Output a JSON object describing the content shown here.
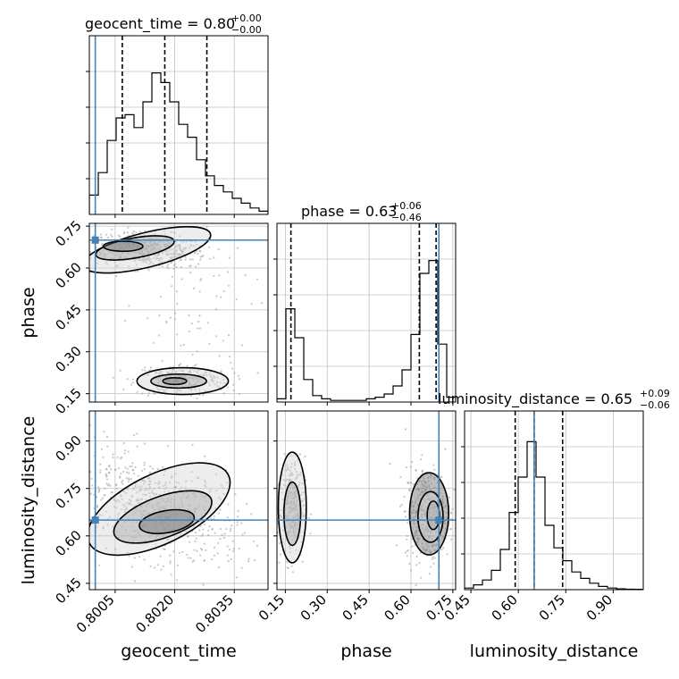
{
  "chart_data": {
    "type": "corner",
    "parameters": [
      "geocent_time",
      "phase",
      "luminosity_distance"
    ],
    "colors": {
      "truth": "#4682b4",
      "hist": "#000000",
      "grid": "#c0c0c0",
      "points": "#9a9a9a",
      "contour": "#000000"
    },
    "titles": [
      {
        "text": "geocent_time = 0.80",
        "plus": "+0.00",
        "minus": "−0.00"
      },
      {
        "text": "phase = 0.63",
        "plus": "+0.06",
        "minus": "−0.46"
      },
      {
        "text": "luminosity_distance = 0.65",
        "plus": "+0.09",
        "minus": "−0.06"
      }
    ],
    "axes": [
      {
        "name": "geocent_time",
        "range": [
          0.79985,
          0.80435
        ],
        "ticks": [
          0.8005,
          0.802,
          0.8035
        ],
        "tick_labels": [
          "0.8005",
          "0.8020",
          "0.8035"
        ],
        "truth": 0.8,
        "quantiles": [
          0.80068,
          0.80175,
          0.80281
        ]
      },
      {
        "name": "phase",
        "range": [
          0.12,
          0.76
        ],
        "ticks": [
          0.15,
          0.3,
          0.45,
          0.6,
          0.75
        ],
        "tick_labels": [
          "0.15",
          "0.30",
          "0.45",
          "0.60",
          "0.75"
        ],
        "truth": 0.7,
        "quantiles": [
          0.17,
          0.63,
          0.69
        ]
      },
      {
        "name": "luminosity_distance",
        "range": [
          0.43,
          0.995
        ],
        "ticks": [
          0.45,
          0.6,
          0.75,
          0.9
        ],
        "tick_labels": [
          "0.45",
          "0.60",
          "0.75",
          "0.90"
        ],
        "truth": 0.65,
        "quantiles": [
          0.59,
          0.65,
          0.74
        ]
      }
    ],
    "histograms": [
      {
        "param": "geocent_time",
        "counts": [
          0.12,
          0.26,
          0.46,
          0.6,
          0.62,
          0.54,
          0.7,
          0.88,
          0.82,
          0.7,
          0.56,
          0.48,
          0.34,
          0.24,
          0.18,
          0.14,
          0.1,
          0.07,
          0.04,
          0.02
        ]
      },
      {
        "param": "phase",
        "counts": [
          0.02,
          0.58,
          0.4,
          0.14,
          0.04,
          0.02,
          0.01,
          0.01,
          0.01,
          0.01,
          0.02,
          0.03,
          0.05,
          0.1,
          0.2,
          0.42,
          0.8,
          0.88,
          0.36,
          0.03
        ]
      },
      {
        "param": "luminosity_distance",
        "counts": [
          0.01,
          0.03,
          0.06,
          0.12,
          0.25,
          0.48,
          0.7,
          0.92,
          0.7,
          0.4,
          0.26,
          0.18,
          0.11,
          0.07,
          0.04,
          0.02,
          0.01,
          0.005,
          0.003,
          0.002
        ]
      }
    ],
    "scatter_2d": [
      {
        "x": "geocent_time",
        "y": "phase",
        "clusters": [
          {
            "cx": 0.8013,
            "cy": 0.665,
            "sx": 0.00075,
            "sy": 0.03,
            "tilt": -22,
            "n": 520
          },
          {
            "cx": 0.8022,
            "cy": 0.2,
            "sx": 0.0006,
            "sy": 0.03,
            "tilt": 0,
            "n": 220
          },
          {
            "cx": 0.8023,
            "cy": 0.42,
            "sx": 0.0008,
            "sy": 0.14,
            "tilt": 0,
            "n": 70
          }
        ]
      },
      {
        "x": "geocent_time",
        "y": "luminosity_distance",
        "clusters": [
          {
            "cx": 0.8015,
            "cy": 0.69,
            "sx": 0.0011,
            "sy": 0.08,
            "tilt": -40,
            "n": 650
          }
        ]
      },
      {
        "x": "phase",
        "y": "luminosity_distance",
        "clusters": [
          {
            "cx": 0.17,
            "cy": 0.69,
            "sx": 0.025,
            "sy": 0.08,
            "tilt": 0,
            "n": 300
          },
          {
            "cx": 0.66,
            "cy": 0.67,
            "sx": 0.04,
            "sy": 0.075,
            "tilt": 0,
            "n": 420
          }
        ]
      }
    ],
    "contours_2d": [
      {
        "x": "geocent_time",
        "y": "phase",
        "levels": [
          {
            "cx": 0.8013,
            "cy": 0.665,
            "rx": 0.00165,
            "ry": 0.062,
            "tilt": -14
          },
          {
            "cx": 0.801,
            "cy": 0.672,
            "rx": 0.001,
            "ry": 0.036,
            "tilt": -10
          },
          {
            "cx": 0.8007,
            "cy": 0.678,
            "rx": 0.0005,
            "ry": 0.018,
            "tilt": 0
          },
          {
            "cx": 0.8022,
            "cy": 0.195,
            "rx": 0.00115,
            "ry": 0.048,
            "tilt": 0
          },
          {
            "cx": 0.8021,
            "cy": 0.195,
            "rx": 0.0007,
            "ry": 0.025,
            "tilt": 0
          },
          {
            "cx": 0.802,
            "cy": 0.195,
            "rx": 0.0003,
            "ry": 0.012,
            "tilt": 0
          }
        ]
      },
      {
        "x": "geocent_time",
        "y": "luminosity_distance",
        "levels": [
          {
            "cx": 0.8016,
            "cy": 0.685,
            "rx": 0.00195,
            "ry": 0.11,
            "tilt": -26
          },
          {
            "cx": 0.8017,
            "cy": 0.66,
            "rx": 0.0013,
            "ry": 0.065,
            "tilt": -20
          },
          {
            "cx": 0.8018,
            "cy": 0.645,
            "rx": 0.0007,
            "ry": 0.035,
            "tilt": -10
          }
        ]
      },
      {
        "x": "phase",
        "y": "luminosity_distance",
        "levels": [
          {
            "cx": 0.175,
            "cy": 0.69,
            "rx": 0.05,
            "ry": 0.175,
            "tilt": 0
          },
          {
            "cx": 0.175,
            "cy": 0.67,
            "rx": 0.03,
            "ry": 0.1,
            "tilt": 0
          },
          {
            "cx": 0.665,
            "cy": 0.67,
            "rx": 0.07,
            "ry": 0.13,
            "tilt": 0
          },
          {
            "cx": 0.67,
            "cy": 0.66,
            "rx": 0.045,
            "ry": 0.08,
            "tilt": 0
          },
          {
            "cx": 0.68,
            "cy": 0.665,
            "rx": 0.022,
            "ry": 0.045,
            "tilt": 0
          }
        ]
      }
    ]
  }
}
